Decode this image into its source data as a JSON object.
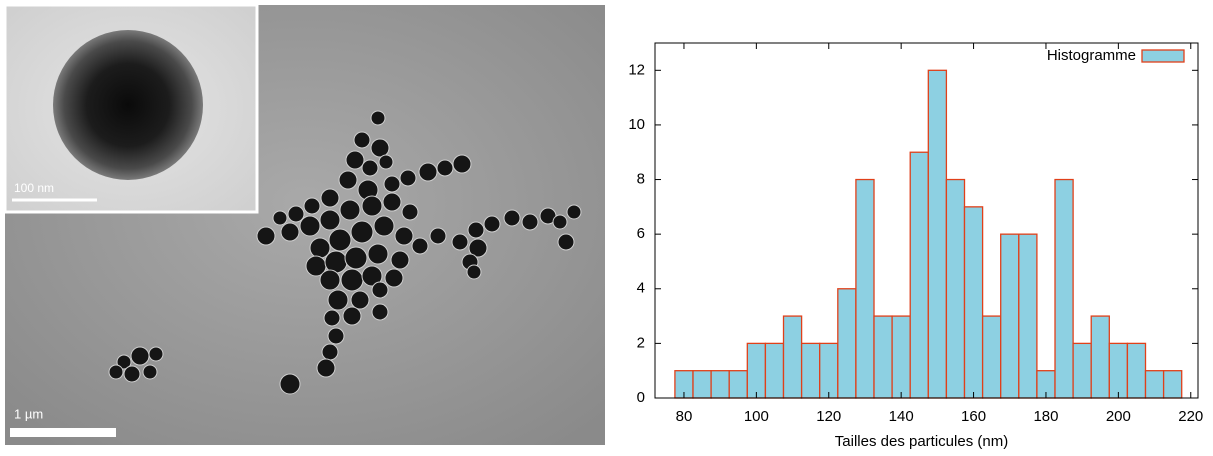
{
  "image": {
    "inset_scale": "100 nm",
    "scale": "1 µm"
  },
  "chart_data": {
    "type": "histogram",
    "xlabel": "Tailles des particules (nm)",
    "bins": [
      77.5,
      82.5,
      87.5,
      92.5,
      97.5,
      102.5,
      107.5,
      112.5,
      117.5,
      122.5,
      127.5,
      132.5,
      137.5,
      142.5,
      147.5,
      152.5,
      157.5,
      162.5,
      167.5,
      172.5,
      177.5,
      182.5,
      187.5,
      192.5,
      197.5,
      202.5,
      207.5,
      212.5,
      217.5
    ],
    "series": [
      {
        "name": "Histogramme",
        "color": "#8dd0e2",
        "edgecolor": "#e0401a",
        "values": [
          1,
          1,
          1,
          1,
          2,
          2,
          3,
          2,
          2,
          4,
          8,
          3,
          3,
          9,
          12,
          8,
          7,
          3,
          6,
          6,
          1,
          8,
          2,
          3,
          2,
          2,
          1,
          1
        ]
      }
    ],
    "xlim": [
      72,
      222
    ],
    "ylim": [
      0,
      13
    ],
    "xticks": [
      80,
      100,
      120,
      140,
      160,
      180,
      200,
      220
    ],
    "yticks": [
      0,
      2,
      4,
      6,
      8,
      10,
      12
    ],
    "legend": "upper right"
  }
}
